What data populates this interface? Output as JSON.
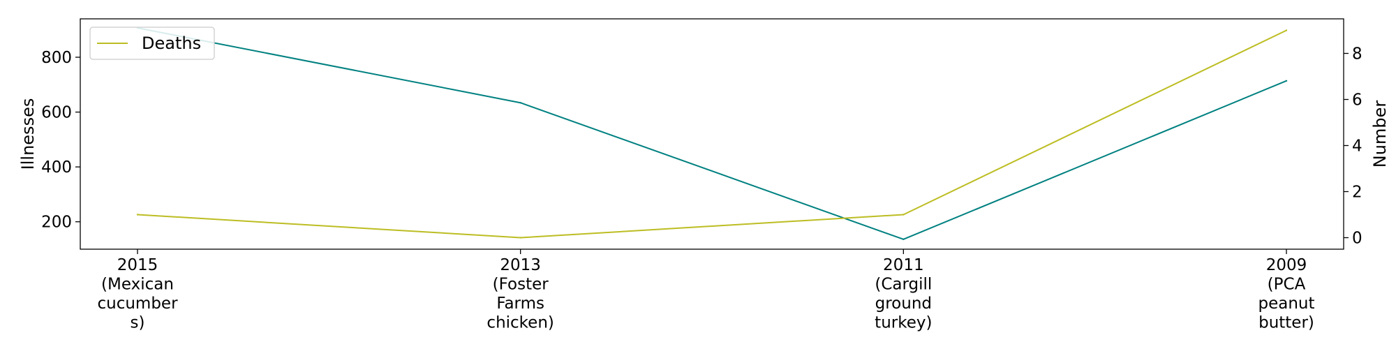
{
  "chart_data": {
    "type": "line",
    "categories": [
      [
        "2015",
        "(Mexican",
        "cucumber",
        "s)"
      ],
      [
        "2013",
        "(Foster",
        "Farms",
        "chicken)"
      ],
      [
        "2011",
        "(Cargill",
        "ground",
        "turkey)"
      ],
      [
        "2009",
        "(PCA",
        "peanut",
        "butter)"
      ]
    ],
    "left_axis": {
      "label": "Illnesses",
      "ylim": [
        100,
        940
      ],
      "ticks": [
        200,
        400,
        600,
        800
      ]
    },
    "right_axis": {
      "label": "Number",
      "ylim": [
        -0.5,
        9.5
      ],
      "ticks": [
        0,
        2,
        4,
        6,
        8
      ]
    },
    "series": [
      {
        "name": "",
        "axis": "left",
        "color": "#008080",
        "values": [
          907,
          634,
          136,
          714
        ]
      },
      {
        "name": "Deaths",
        "axis": "right",
        "color": "#bcbd22",
        "values": [
          1,
          0,
          1,
          9
        ]
      }
    ],
    "legend": {
      "placement": "top-left",
      "entries": [
        "Deaths"
      ]
    },
    "grid": false
  }
}
